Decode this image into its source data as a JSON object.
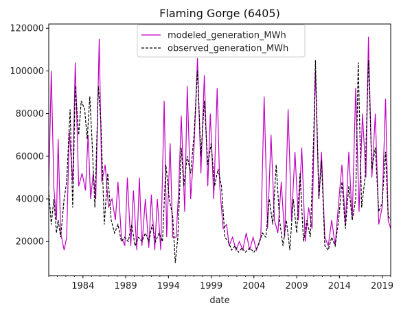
{
  "chart_data": {
    "type": "line",
    "title": "Flaming Gorge (6405)",
    "xlabel": "date",
    "ylabel": "",
    "xlim": [
      1980.0,
      2020.0
    ],
    "ylim": [
      4000,
      122000
    ],
    "x_ticks": [
      1984,
      1989,
      1994,
      1999,
      2004,
      2009,
      2014,
      2019
    ],
    "y_ticks": [
      20000,
      40000,
      60000,
      80000,
      100000,
      120000
    ],
    "y_tick_labels": [
      "20000",
      "40000",
      "60000",
      "80000",
      "100000",
      "120000"
    ],
    "legend_position": "top-center",
    "grid": false,
    "series": [
      {
        "name": "modeled_generation_MWh",
        "color": "#c000c0",
        "dash": "solid",
        "points": [
          [
            1980.0,
            46000
          ],
          [
            1980.3,
            100000
          ],
          [
            1980.6,
            45000
          ],
          [
            1980.9,
            30000
          ],
          [
            1981.1,
            68000
          ],
          [
            1981.4,
            24000
          ],
          [
            1981.8,
            16000
          ],
          [
            1982.1,
            22000
          ],
          [
            1982.4,
            72000
          ],
          [
            1982.8,
            48000
          ],
          [
            1983.1,
            104000
          ],
          [
            1983.5,
            46000
          ],
          [
            1983.9,
            52000
          ],
          [
            1984.3,
            44000
          ],
          [
            1984.6,
            70000
          ],
          [
            1984.9,
            40000
          ],
          [
            1985.2,
            52000
          ],
          [
            1985.5,
            40000
          ],
          [
            1985.9,
            115000
          ],
          [
            1986.2,
            48000
          ],
          [
            1986.6,
            56000
          ],
          [
            1987.0,
            36000
          ],
          [
            1987.4,
            40000
          ],
          [
            1987.8,
            30000
          ],
          [
            1988.1,
            48000
          ],
          [
            1988.5,
            22000
          ],
          [
            1988.9,
            18000
          ],
          [
            1989.2,
            50000
          ],
          [
            1989.6,
            18000
          ],
          [
            1989.9,
            44000
          ],
          [
            1990.3,
            16000
          ],
          [
            1990.6,
            50000
          ],
          [
            1990.9,
            18000
          ],
          [
            1991.3,
            40000
          ],
          [
            1991.7,
            17000
          ],
          [
            1992.0,
            42000
          ],
          [
            1992.4,
            16000
          ],
          [
            1992.7,
            40000
          ],
          [
            1993.1,
            16000
          ],
          [
            1993.5,
            86000
          ],
          [
            1993.8,
            22000
          ],
          [
            1994.2,
            66000
          ],
          [
            1994.5,
            22000
          ],
          [
            1994.9,
            22000
          ],
          [
            1995.2,
            44000
          ],
          [
            1995.5,
            79000
          ],
          [
            1995.9,
            34000
          ],
          [
            1996.2,
            93000
          ],
          [
            1996.6,
            40000
          ],
          [
            1997.0,
            64000
          ],
          [
            1997.4,
            106000
          ],
          [
            1997.8,
            52000
          ],
          [
            1998.2,
            98000
          ],
          [
            1998.6,
            46000
          ],
          [
            1998.9,
            80000
          ],
          [
            1999.3,
            40000
          ],
          [
            1999.7,
            92000
          ],
          [
            2000.0,
            46000
          ],
          [
            2000.4,
            26000
          ],
          [
            2000.8,
            28000
          ],
          [
            2001.1,
            18000
          ],
          [
            2001.5,
            22000
          ],
          [
            2001.9,
            16000
          ],
          [
            2002.3,
            20000
          ],
          [
            2002.7,
            16000
          ],
          [
            2003.1,
            24000
          ],
          [
            2003.5,
            16000
          ],
          [
            2003.9,
            22000
          ],
          [
            2004.3,
            16000
          ],
          [
            2004.8,
            22000
          ],
          [
            2005.2,
            88000
          ],
          [
            2005.6,
            26000
          ],
          [
            2006.0,
            70000
          ],
          [
            2006.4,
            30000
          ],
          [
            2006.8,
            24000
          ],
          [
            2007.2,
            48000
          ],
          [
            2007.6,
            22000
          ],
          [
            2008.0,
            82000
          ],
          [
            2008.4,
            30000
          ],
          [
            2008.8,
            62000
          ],
          [
            2009.2,
            30000
          ],
          [
            2009.6,
            64000
          ],
          [
            2010.0,
            20000
          ],
          [
            2010.4,
            36000
          ],
          [
            2010.8,
            26000
          ],
          [
            2011.2,
            100000
          ],
          [
            2011.6,
            40000
          ],
          [
            2011.9,
            62000
          ],
          [
            2012.3,
            22000
          ],
          [
            2012.7,
            18000
          ],
          [
            2013.1,
            30000
          ],
          [
            2013.5,
            18000
          ],
          [
            2013.9,
            38000
          ],
          [
            2014.3,
            56000
          ],
          [
            2014.7,
            28000
          ],
          [
            2015.1,
            62000
          ],
          [
            2015.5,
            30000
          ],
          [
            2015.9,
            92000
          ],
          [
            2016.3,
            34000
          ],
          [
            2016.7,
            80000
          ],
          [
            2017.1,
            50000
          ],
          [
            2017.4,
            116000
          ],
          [
            2017.8,
            50000
          ],
          [
            2018.2,
            80000
          ],
          [
            2018.6,
            28000
          ],
          [
            2019.0,
            36000
          ],
          [
            2019.4,
            87000
          ],
          [
            2019.7,
            30000
          ],
          [
            2020.0,
            26000
          ]
        ]
      },
      {
        "name": "observed_generation_MWh",
        "color": "#000000",
        "dash": "dashed",
        "points": [
          [
            1980.0,
            44000
          ],
          [
            1980.3,
            28000
          ],
          [
            1980.6,
            40000
          ],
          [
            1980.9,
            24000
          ],
          [
            1981.1,
            30000
          ],
          [
            1981.4,
            22000
          ],
          [
            1981.8,
            40000
          ],
          [
            1982.1,
            48000
          ],
          [
            1982.5,
            82000
          ],
          [
            1982.8,
            36000
          ],
          [
            1983.1,
            93000
          ],
          [
            1983.5,
            70000
          ],
          [
            1983.8,
            86000
          ],
          [
            1984.2,
            82000
          ],
          [
            1984.5,
            68000
          ],
          [
            1984.8,
            88000
          ],
          [
            1985.1,
            64000
          ],
          [
            1985.4,
            36000
          ],
          [
            1985.8,
            93000
          ],
          [
            1986.1,
            76000
          ],
          [
            1986.5,
            28000
          ],
          [
            1986.9,
            52000
          ],
          [
            1987.3,
            30000
          ],
          [
            1987.7,
            24000
          ],
          [
            1988.1,
            28000
          ],
          [
            1988.5,
            20000
          ],
          [
            1988.9,
            22000
          ],
          [
            1989.3,
            20000
          ],
          [
            1989.7,
            28000
          ],
          [
            1990.1,
            18000
          ],
          [
            1990.5,
            22000
          ],
          [
            1990.9,
            20000
          ],
          [
            1991.3,
            24000
          ],
          [
            1991.7,
            20000
          ],
          [
            1992.1,
            28000
          ],
          [
            1992.5,
            20000
          ],
          [
            1992.9,
            24000
          ],
          [
            1993.3,
            20000
          ],
          [
            1993.7,
            56000
          ],
          [
            1994.1,
            40000
          ],
          [
            1994.5,
            32000
          ],
          [
            1994.8,
            10000
          ],
          [
            1995.1,
            22000
          ],
          [
            1995.5,
            64000
          ],
          [
            1995.8,
            46000
          ],
          [
            1996.2,
            60000
          ],
          [
            1996.6,
            52000
          ],
          [
            1997.0,
            70000
          ],
          [
            1997.4,
            100000
          ],
          [
            1997.8,
            60000
          ],
          [
            1998.2,
            86000
          ],
          [
            1998.6,
            56000
          ],
          [
            1999.0,
            66000
          ],
          [
            1999.4,
            46000
          ],
          [
            1999.8,
            54000
          ],
          [
            2000.2,
            46000
          ],
          [
            2000.6,
            22000
          ],
          [
            2001.0,
            20000
          ],
          [
            2001.4,
            16000
          ],
          [
            2001.8,
            18000
          ],
          [
            2002.2,
            15000
          ],
          [
            2002.6,
            17000
          ],
          [
            2003.0,
            15000
          ],
          [
            2003.5,
            17000
          ],
          [
            2004.0,
            15000
          ],
          [
            2004.5,
            18000
          ],
          [
            2005.0,
            24000
          ],
          [
            2005.4,
            22000
          ],
          [
            2005.8,
            40000
          ],
          [
            2006.2,
            28000
          ],
          [
            2006.6,
            56000
          ],
          [
            2007.0,
            30000
          ],
          [
            2007.4,
            18000
          ],
          [
            2007.8,
            30000
          ],
          [
            2008.2,
            16000
          ],
          [
            2008.6,
            40000
          ],
          [
            2009.0,
            24000
          ],
          [
            2009.4,
            52000
          ],
          [
            2009.8,
            20000
          ],
          [
            2010.2,
            30000
          ],
          [
            2010.6,
            22000
          ],
          [
            2011.0,
            70000
          ],
          [
            2011.2,
            105000
          ],
          [
            2011.6,
            40000
          ],
          [
            2011.9,
            58000
          ],
          [
            2012.3,
            18000
          ],
          [
            2012.7,
            16000
          ],
          [
            2013.1,
            22000
          ],
          [
            2013.5,
            18000
          ],
          [
            2013.9,
            30000
          ],
          [
            2014.3,
            48000
          ],
          [
            2014.7,
            26000
          ],
          [
            2015.1,
            46000
          ],
          [
            2015.5,
            30000
          ],
          [
            2015.9,
            40000
          ],
          [
            2016.2,
            104000
          ],
          [
            2016.6,
            36000
          ],
          [
            2017.0,
            50000
          ],
          [
            2017.4,
            105000
          ],
          [
            2017.8,
            54000
          ],
          [
            2018.2,
            64000
          ],
          [
            2018.6,
            34000
          ],
          [
            2019.0,
            38000
          ],
          [
            2019.4,
            62000
          ],
          [
            2019.7,
            32000
          ],
          [
            2020.0,
            30000
          ]
        ]
      }
    ]
  }
}
